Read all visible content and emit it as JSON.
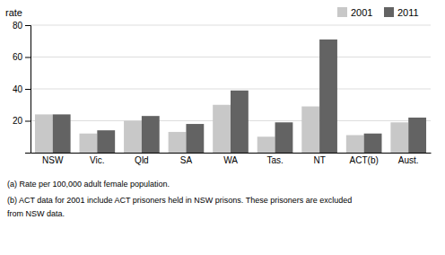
{
  "chart_data": {
    "type": "bar",
    "categories": [
      "NSW",
      "Vic.",
      "Qld",
      "SA",
      "WA",
      "Tas.",
      "NT",
      "ACT(b)",
      "Aust."
    ],
    "series": [
      {
        "name": "2001",
        "color": "#c8c8c8",
        "values": [
          24,
          12,
          20,
          13,
          30,
          10,
          29,
          11,
          19
        ]
      },
      {
        "name": "2011",
        "color": "#636363",
        "values": [
          24,
          14,
          23,
          18,
          39,
          19,
          71,
          12,
          22
        ]
      }
    ],
    "ylim": [
      0,
      80
    ],
    "yticks": [
      20,
      40,
      60,
      80
    ],
    "ylabel": "rate",
    "grid": true,
    "legend": "top-right",
    "annotations": [
      "(a) Rate per 100,000 adult female population.",
      "(b) ACT data for 2001 include ACT prisoners held in NSW prisons. These prisoners are excluded",
      "from NSW data."
    ]
  }
}
